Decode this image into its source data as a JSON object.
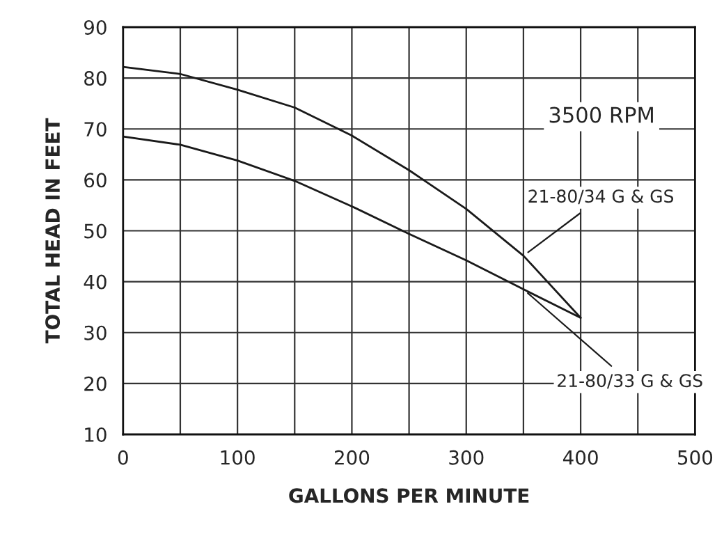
{
  "chart_data": {
    "type": "line",
    "xlabel": "GALLONS PER MINUTE",
    "ylabel": "TOTAL HEAD IN FEET",
    "x": [
      0,
      50,
      100,
      150,
      200,
      250,
      300,
      350,
      400
    ],
    "series": [
      {
        "name": "21-80/34 G & GS",
        "color": "#1a1a1a",
        "values": [
          82.2,
          80.8,
          77.7,
          74.2,
          68.7,
          61.9,
          54.3,
          45.1,
          32.9
        ]
      },
      {
        "name": "21-80/33 G & GS",
        "color": "#1a1a1a",
        "values": [
          68.5,
          66.9,
          63.8,
          59.8,
          54.8,
          49.4,
          44.2,
          38.5,
          32.9
        ]
      }
    ],
    "annotations": [
      "3500 RPM"
    ],
    "xlim": [
      0,
      500
    ],
    "ylim": [
      10,
      90
    ],
    "xticks": [
      0,
      {
        "value": 50,
        "label": null
      },
      100,
      {
        "value": 150,
        "label": null
      },
      200,
      {
        "value": 250,
        "label": null
      },
      300,
      {
        "value": 350,
        "label": null
      },
      400,
      {
        "value": 450,
        "label": null
      },
      500
    ],
    "yticks": [
      10,
      20,
      30,
      40,
      50,
      60,
      70,
      80,
      90
    ],
    "grid": true,
    "legend": false,
    "marker": "none",
    "line_style": "solid"
  }
}
